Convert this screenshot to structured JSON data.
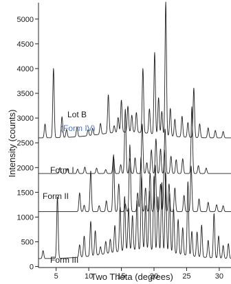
{
  "chart_data": {
    "type": "line",
    "title": "",
    "xlabel": "Two Theta (degrees)",
    "ylabel": "Intensity (counts)",
    "xlim": [
      2.3,
      31.8
    ],
    "ylim": [
      -20,
      5330
    ],
    "x_ticks": [
      5,
      10,
      15,
      20,
      25,
      30
    ],
    "x_tick_labels": [
      "5",
      "10",
      "15",
      "20",
      "25",
      "30"
    ],
    "y_ticks": [
      0,
      500,
      1000,
      1500,
      2000,
      2500,
      3000,
      3500,
      4000,
      4500,
      5000
    ],
    "y_tick_labels": [
      "0",
      "500",
      "1000",
      "1500",
      "2000",
      "2500",
      "3000",
      "3500",
      "4000",
      "4500",
      "5000"
    ],
    "grid": false,
    "legend": "none",
    "colors": {
      "line": "#1f1f1f",
      "accent_label": "#4a78c2"
    },
    "series": [
      {
        "name": "Lot B",
        "annotation": "(Form IV)",
        "baseline": 2600,
        "peaks": [
          [
            3.3,
            280
          ],
          [
            4.6,
            1400
          ],
          [
            5.9,
            420
          ],
          [
            6.6,
            160
          ],
          [
            8.2,
            200
          ],
          [
            9.9,
            120
          ],
          [
            10.6,
            140
          ],
          [
            11.8,
            220
          ],
          [
            13.0,
            780
          ],
          [
            13.9,
            140
          ],
          [
            14.5,
            300
          ],
          [
            15.0,
            650
          ],
          [
            16.0,
            520
          ],
          [
            16.6,
            340
          ],
          [
            17.3,
            400
          ],
          [
            18.3,
            1300
          ],
          [
            19.3,
            500
          ],
          [
            20.1,
            1650
          ],
          [
            20.7,
            750
          ],
          [
            21.2,
            480
          ],
          [
            21.8,
            2700
          ],
          [
            22.5,
            560
          ],
          [
            23.2,
            350
          ],
          [
            24.3,
            420
          ],
          [
            25.2,
            300
          ],
          [
            26.1,
            1000
          ],
          [
            27.0,
            280
          ],
          [
            28.3,
            200
          ],
          [
            29.4,
            150
          ],
          [
            30.6,
            130
          ]
        ]
      },
      {
        "name": "Form I",
        "baseline": 1880,
        "peaks": [
          [
            5.6,
            120
          ],
          [
            6.7,
            100
          ],
          [
            8.3,
            90
          ],
          [
            9.4,
            130
          ],
          [
            11.2,
            110
          ],
          [
            12.6,
            80
          ],
          [
            13.8,
            350
          ],
          [
            14.9,
            180
          ],
          [
            15.6,
            1300
          ],
          [
            16.3,
            300
          ],
          [
            17.1,
            320
          ],
          [
            18.2,
            1000
          ],
          [
            18.9,
            220
          ],
          [
            19.6,
            480
          ],
          [
            20.3,
            700
          ],
          [
            21.0,
            500
          ],
          [
            21.7,
            900
          ],
          [
            22.6,
            350
          ],
          [
            23.4,
            280
          ],
          [
            24.4,
            300
          ],
          [
            25.8,
            1350
          ],
          [
            26.8,
            160
          ],
          [
            28.0,
            110
          ]
        ]
      },
      {
        "name": "Form II",
        "baseline": 1110,
        "peaks": [
          [
            8.6,
            380
          ],
          [
            9.3,
            130
          ],
          [
            10.3,
            820
          ],
          [
            11.6,
            120
          ],
          [
            12.7,
            220
          ],
          [
            13.8,
            1150
          ],
          [
            14.6,
            560
          ],
          [
            15.6,
            160
          ],
          [
            16.3,
            1350
          ],
          [
            17.5,
            380
          ],
          [
            18.0,
            1100
          ],
          [
            18.7,
            480
          ],
          [
            19.4,
            780
          ],
          [
            20.2,
            940
          ],
          [
            21.0,
            560
          ],
          [
            21.6,
            1250
          ],
          [
            22.3,
            560
          ],
          [
            23.2,
            480
          ],
          [
            24.6,
            330
          ],
          [
            25.7,
            920
          ],
          [
            26.9,
            260
          ],
          [
            28.3,
            190
          ],
          [
            29.6,
            140
          ],
          [
            30.6,
            120
          ]
        ]
      },
      {
        "name": "Form III",
        "baseline": 160,
        "peaks": [
          [
            3.0,
            160
          ],
          [
            5.2,
            1250
          ],
          [
            8.6,
            250
          ],
          [
            9.3,
            420
          ],
          [
            10.3,
            700
          ],
          [
            11.0,
            500
          ],
          [
            11.8,
            160
          ],
          [
            12.6,
            250
          ],
          [
            13.3,
            280
          ],
          [
            14.0,
            540
          ],
          [
            14.8,
            900
          ],
          [
            15.5,
            1100
          ],
          [
            16.1,
            850
          ],
          [
            16.7,
            700
          ],
          [
            17.4,
            1000
          ],
          [
            18.1,
            1500
          ],
          [
            18.7,
            900
          ],
          [
            19.3,
            1200
          ],
          [
            20.0,
            1500
          ],
          [
            20.6,
            1100
          ],
          [
            21.2,
            1400
          ],
          [
            21.8,
            1600
          ],
          [
            22.4,
            1200
          ],
          [
            23.0,
            900
          ],
          [
            23.7,
            700
          ],
          [
            24.4,
            550
          ],
          [
            25.2,
            1500
          ],
          [
            25.8,
            500
          ],
          [
            26.6,
            500
          ],
          [
            27.3,
            650
          ],
          [
            28.3,
            350
          ],
          [
            29.2,
            900
          ],
          [
            29.9,
            450
          ],
          [
            30.6,
            260
          ],
          [
            31.4,
            300
          ]
        ]
      }
    ]
  }
}
